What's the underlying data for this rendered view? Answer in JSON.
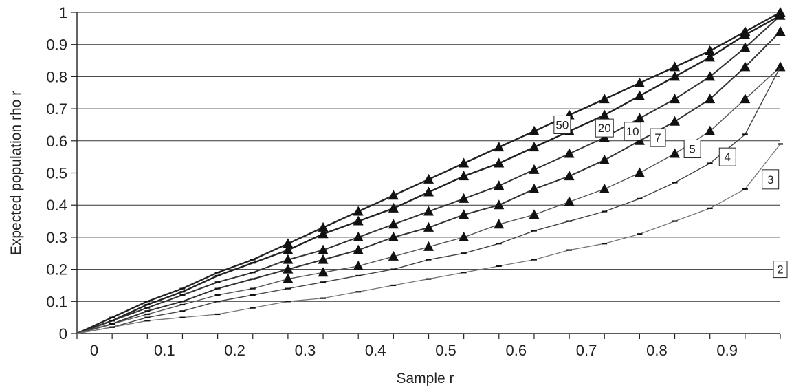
{
  "chart_data": {
    "type": "line",
    "xlabel": "Sample r",
    "ylabel": "Expected population rho r",
    "xlim": [
      0,
      1
    ],
    "ylim": [
      0,
      1
    ],
    "x_ticks": [
      "0",
      "0.1",
      "0.2",
      "0.3",
      "0.4",
      "0.5",
      "0.6",
      "0.7",
      "0.8",
      "0.9",
      "1"
    ],
    "y_ticks": [
      "0",
      "0.1",
      "0.2",
      "0.3",
      "0.4",
      "0.5",
      "0.6",
      "0.7",
      "0.8",
      "0.9",
      "1"
    ],
    "grid": "horizontal",
    "series": [
      {
        "name": "50",
        "marker": "triangle",
        "points": [
          [
            0,
            0
          ],
          [
            0.05,
            0.05
          ],
          [
            0.1,
            0.1
          ],
          [
            0.15,
            0.14
          ],
          [
            0.2,
            0.19
          ],
          [
            0.25,
            0.23
          ],
          [
            0.3,
            0.28
          ],
          [
            0.35,
            0.33
          ],
          [
            0.4,
            0.38
          ],
          [
            0.45,
            0.43
          ],
          [
            0.5,
            0.48
          ],
          [
            0.55,
            0.53
          ],
          [
            0.6,
            0.58
          ],
          [
            0.65,
            0.63
          ],
          [
            0.7,
            0.68
          ],
          [
            0.75,
            0.73
          ],
          [
            0.8,
            0.78
          ],
          [
            0.85,
            0.83
          ],
          [
            0.9,
            0.88
          ],
          [
            0.95,
            0.94
          ],
          [
            1,
            1
          ]
        ]
      },
      {
        "name": "20",
        "marker": "triangle",
        "points": [
          [
            0,
            0
          ],
          [
            0.05,
            0.04
          ],
          [
            0.1,
            0.09
          ],
          [
            0.15,
            0.13
          ],
          [
            0.2,
            0.18
          ],
          [
            0.25,
            0.22
          ],
          [
            0.3,
            0.26
          ],
          [
            0.35,
            0.31
          ],
          [
            0.4,
            0.35
          ],
          [
            0.45,
            0.39
          ],
          [
            0.5,
            0.44
          ],
          [
            0.55,
            0.49
          ],
          [
            0.6,
            0.53
          ],
          [
            0.65,
            0.58
          ],
          [
            0.7,
            0.63
          ],
          [
            0.75,
            0.68
          ],
          [
            0.8,
            0.74
          ],
          [
            0.85,
            0.8
          ],
          [
            0.9,
            0.86
          ],
          [
            0.95,
            0.93
          ],
          [
            1,
            0.99
          ]
        ]
      },
      {
        "name": "10",
        "marker": "triangle",
        "points": [
          [
            0,
            0
          ],
          [
            0.05,
            0.04
          ],
          [
            0.1,
            0.08
          ],
          [
            0.15,
            0.12
          ],
          [
            0.2,
            0.16
          ],
          [
            0.25,
            0.19
          ],
          [
            0.3,
            0.23
          ],
          [
            0.35,
            0.26
          ],
          [
            0.4,
            0.3
          ],
          [
            0.45,
            0.34
          ],
          [
            0.5,
            0.38
          ],
          [
            0.55,
            0.42
          ],
          [
            0.6,
            0.46
          ],
          [
            0.65,
            0.51
          ],
          [
            0.7,
            0.56
          ],
          [
            0.75,
            0.61
          ],
          [
            0.8,
            0.67
          ],
          [
            0.85,
            0.73
          ],
          [
            0.9,
            0.8
          ],
          [
            0.95,
            0.89
          ],
          [
            1,
            0.99
          ]
        ]
      },
      {
        "name": "7",
        "marker": "triangle",
        "points": [
          [
            0,
            0
          ],
          [
            0.05,
            0.03
          ],
          [
            0.1,
            0.07
          ],
          [
            0.15,
            0.1
          ],
          [
            0.2,
            0.14
          ],
          [
            0.25,
            0.17
          ],
          [
            0.3,
            0.2
          ],
          [
            0.35,
            0.23
          ],
          [
            0.4,
            0.26
          ],
          [
            0.45,
            0.3
          ],
          [
            0.5,
            0.33
          ],
          [
            0.55,
            0.37
          ],
          [
            0.6,
            0.4
          ],
          [
            0.65,
            0.45
          ],
          [
            0.7,
            0.49
          ],
          [
            0.75,
            0.54
          ],
          [
            0.8,
            0.6
          ],
          [
            0.85,
            0.66
          ],
          [
            0.9,
            0.73
          ],
          [
            0.95,
            0.83
          ],
          [
            1,
            0.94
          ]
        ]
      },
      {
        "name": "5",
        "marker": "triangle",
        "points": [
          [
            0,
            0
          ],
          [
            0.05,
            0.03
          ],
          [
            0.1,
            0.06
          ],
          [
            0.15,
            0.09
          ],
          [
            0.2,
            0.12
          ],
          [
            0.25,
            0.14
          ],
          [
            0.3,
            0.17
          ],
          [
            0.35,
            0.19
          ],
          [
            0.4,
            0.21
          ],
          [
            0.45,
            0.24
          ],
          [
            0.5,
            0.27
          ],
          [
            0.55,
            0.3
          ],
          [
            0.6,
            0.34
          ],
          [
            0.65,
            0.37
          ],
          [
            0.7,
            0.41
          ],
          [
            0.75,
            0.45
          ],
          [
            0.8,
            0.5
          ],
          [
            0.85,
            0.56
          ],
          [
            0.9,
            0.63
          ],
          [
            0.95,
            0.73
          ],
          [
            1,
            0.83
          ]
        ]
      },
      {
        "name": "4",
        "marker": "dash",
        "points": [
          [
            0,
            0
          ],
          [
            0.05,
            0.02
          ],
          [
            0.1,
            0.05
          ],
          [
            0.15,
            0.07
          ],
          [
            0.2,
            0.1
          ],
          [
            0.25,
            0.12
          ],
          [
            0.3,
            0.14
          ],
          [
            0.35,
            0.16
          ],
          [
            0.4,
            0.18
          ],
          [
            0.45,
            0.2
          ],
          [
            0.5,
            0.23
          ],
          [
            0.55,
            0.25
          ],
          [
            0.6,
            0.28
          ],
          [
            0.65,
            0.32
          ],
          [
            0.7,
            0.35
          ],
          [
            0.75,
            0.38
          ],
          [
            0.8,
            0.42
          ],
          [
            0.85,
            0.47
          ],
          [
            0.9,
            0.53
          ],
          [
            0.95,
            0.62
          ],
          [
            1,
            0.83
          ]
        ]
      },
      {
        "name": "3",
        "marker": "dash",
        "points": [
          [
            0,
            0
          ],
          [
            0.05,
            0.02
          ],
          [
            0.1,
            0.04
          ],
          [
            0.15,
            0.05
          ],
          [
            0.2,
            0.06
          ],
          [
            0.25,
            0.08
          ],
          [
            0.3,
            0.1
          ],
          [
            0.35,
            0.11
          ],
          [
            0.4,
            0.13
          ],
          [
            0.45,
            0.15
          ],
          [
            0.5,
            0.17
          ],
          [
            0.55,
            0.19
          ],
          [
            0.6,
            0.21
          ],
          [
            0.65,
            0.23
          ],
          [
            0.7,
            0.26
          ],
          [
            0.75,
            0.28
          ],
          [
            0.8,
            0.31
          ],
          [
            0.85,
            0.35
          ],
          [
            0.9,
            0.39
          ],
          [
            0.95,
            0.45
          ],
          [
            1,
            0.59
          ]
        ]
      },
      {
        "name": "2",
        "marker": "dash",
        "points": [
          [
            1,
            0.25
          ]
        ]
      }
    ]
  }
}
